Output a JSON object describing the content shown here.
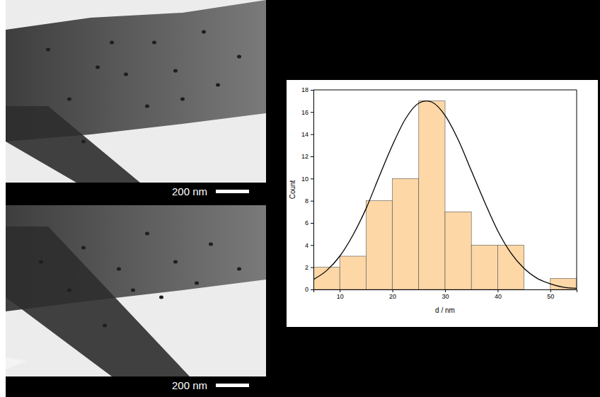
{
  "images": [
    {
      "scale_bar": "200 nm"
    },
    {
      "scale_bar": "200 nm"
    }
  ],
  "chart_data": {
    "type": "histogram",
    "x_label": "d / nm",
    "y_label": "Count",
    "bins": [
      5,
      10,
      15,
      20,
      25,
      30,
      35,
      40,
      45,
      50,
      55
    ],
    "values": [
      2,
      3,
      8,
      10,
      17,
      7,
      4,
      4,
      0,
      1
    ],
    "color": "#fdd7a6",
    "xlim": [
      5,
      55
    ],
    "ylim": [
      0,
      18
    ],
    "xticks": [
      10,
      20,
      30,
      40,
      50
    ],
    "yticks": [
      0,
      2,
      4,
      6,
      8,
      10,
      12,
      14,
      16,
      18
    ],
    "series": [
      {
        "type": "line",
        "color": "#000000",
        "x": [
          5,
          7.5,
          10,
          12.5,
          15,
          17.5,
          20,
          22.5,
          25,
          26.5,
          27.5,
          30,
          32.5,
          35,
          37.5,
          40,
          42.5,
          45,
          47.5,
          50,
          52.5,
          55
        ],
        "values": [
          0.9,
          1.7,
          3.0,
          4.9,
          7.3,
          10.2,
          13.0,
          15.4,
          16.8,
          17.0,
          16.9,
          15.7,
          13.5,
          10.7,
          7.9,
          5.3,
          3.3,
          1.9,
          1.0,
          0.5,
          0.2,
          0.1
        ]
      }
    ]
  }
}
